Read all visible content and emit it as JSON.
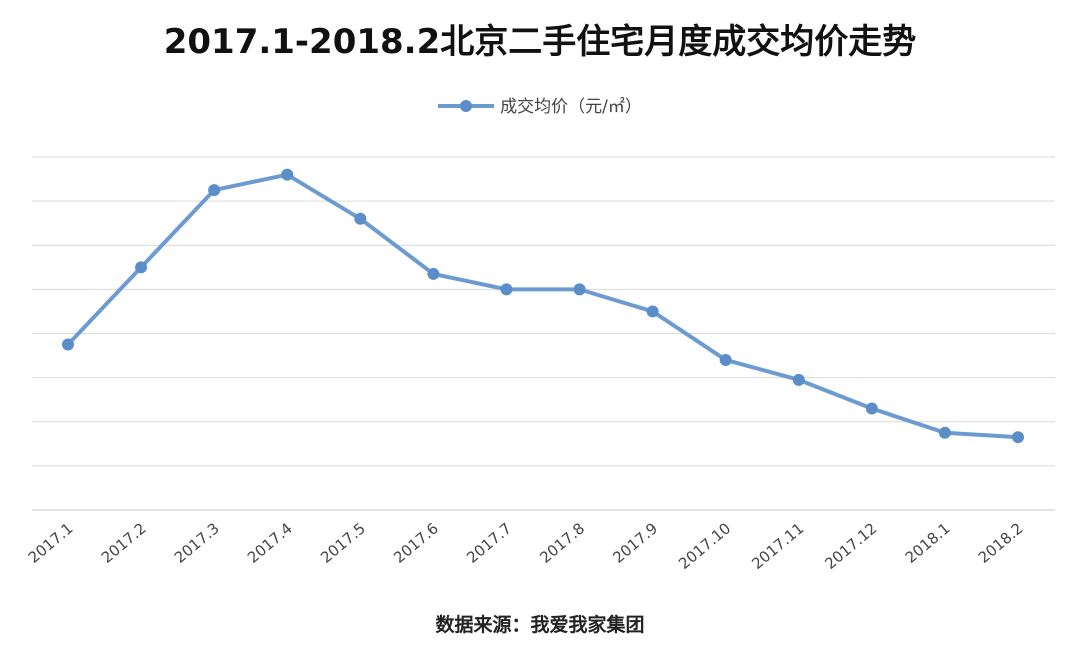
{
  "chart_data": {
    "type": "line",
    "title": "2017.1-2018.2北京二手住宅月度成交均价走势",
    "categories": [
      "2017.1",
      "2017.2",
      "2017.3",
      "2017.4",
      "2017.5",
      "2017.6",
      "2017.7",
      "2017.8",
      "2017.9",
      "2017.10",
      "2017.11",
      "2017.12",
      "2018.1",
      "2018.2"
    ],
    "series": [
      {
        "name": "成交均价（元/㎡）",
        "values": [
          3.75,
          5.5,
          7.25,
          7.6,
          6.6,
          5.35,
          5.0,
          5.0,
          4.5,
          3.4,
          2.95,
          2.3,
          1.75,
          1.65
        ]
      }
    ],
    "ylim": [
      0,
      8
    ],
    "grid": true,
    "legend_position": "top-center",
    "colors": {
      "line": "#6b9bd1",
      "marker": "#5b8ec9",
      "grid": "#d9d9d9"
    }
  },
  "source_text": "数据来源：我爱我家集团"
}
